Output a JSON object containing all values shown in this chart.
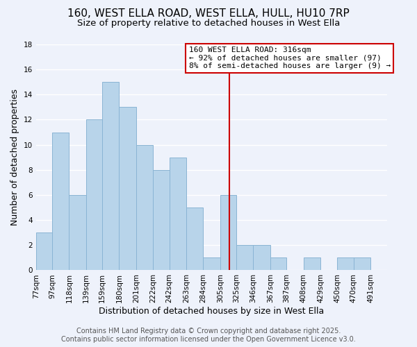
{
  "title": "160, WEST ELLA ROAD, WEST ELLA, HULL, HU10 7RP",
  "subtitle": "Size of property relative to detached houses in West Ella",
  "xlabel": "Distribution of detached houses by size in West Ella",
  "ylabel": "Number of detached properties",
  "bin_labels": [
    "77sqm",
    "97sqm",
    "118sqm",
    "139sqm",
    "159sqm",
    "180sqm",
    "201sqm",
    "222sqm",
    "242sqm",
    "263sqm",
    "284sqm",
    "305sqm",
    "325sqm",
    "346sqm",
    "367sqm",
    "387sqm",
    "408sqm",
    "429sqm",
    "450sqm",
    "470sqm",
    "491sqm"
  ],
  "bin_edges": [
    77,
    97,
    118,
    139,
    159,
    180,
    201,
    222,
    242,
    263,
    284,
    305,
    325,
    346,
    367,
    387,
    408,
    429,
    450,
    470,
    491
  ],
  "counts": [
    3,
    11,
    6,
    12,
    15,
    13,
    10,
    8,
    9,
    5,
    1,
    6,
    2,
    2,
    1,
    0,
    1,
    0,
    1,
    1
  ],
  "bar_color": "#b8d4ea",
  "bar_edge_color": "#8ab4d4",
  "vline_x": 316,
  "vline_color": "#cc0000",
  "ylim": [
    0,
    18
  ],
  "yticks": [
    0,
    2,
    4,
    6,
    8,
    10,
    12,
    14,
    16,
    18
  ],
  "annotation_title": "160 WEST ELLA ROAD: 316sqm",
  "annotation_line1": "← 92% of detached houses are smaller (97)",
  "annotation_line2": "8% of semi-detached houses are larger (9) →",
  "annotation_box_facecolor": "#ffffff",
  "annotation_box_edgecolor": "#cc0000",
  "background_color": "#eef2fb",
  "grid_color": "#ffffff",
  "footer1": "Contains HM Land Registry data © Crown copyright and database right 2025.",
  "footer2": "Contains public sector information licensed under the Open Government Licence v3.0.",
  "title_fontsize": 11,
  "subtitle_fontsize": 9.5,
  "axis_label_fontsize": 9,
  "tick_fontsize": 7.5,
  "annotation_fontsize": 8,
  "footer_fontsize": 7
}
